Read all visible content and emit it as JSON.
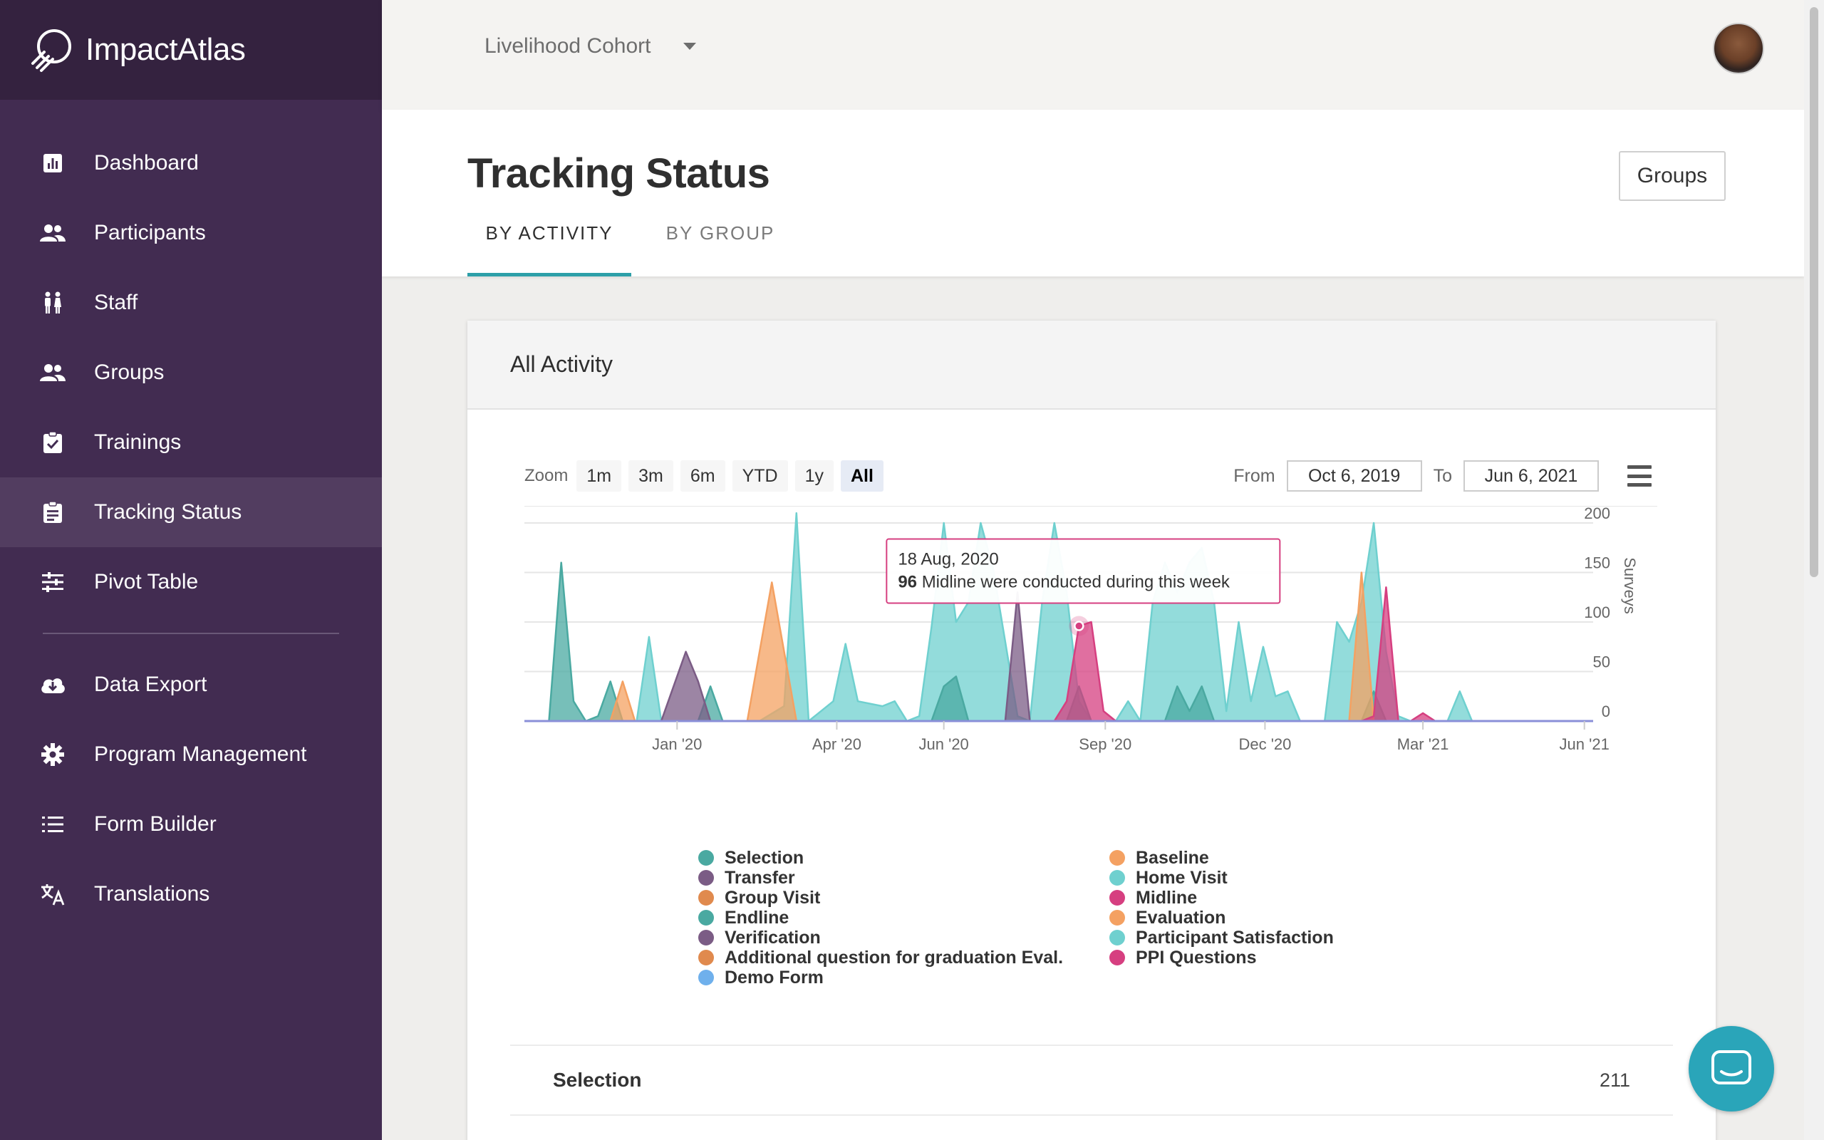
{
  "brand": {
    "name": "ImpactAtlas"
  },
  "sidebar": {
    "items": [
      {
        "label": "Dashboard",
        "icon": "dashboard-icon"
      },
      {
        "label": "Participants",
        "icon": "people-icon"
      },
      {
        "label": "Staff",
        "icon": "staff-icon"
      },
      {
        "label": "Groups",
        "icon": "people-icon"
      },
      {
        "label": "Trainings",
        "icon": "clipboard-check-icon"
      },
      {
        "label": "Tracking Status",
        "icon": "clipboard-list-icon",
        "active": true
      },
      {
        "label": "Pivot Table",
        "icon": "sliders-icon"
      }
    ],
    "items2": [
      {
        "label": "Data Export",
        "icon": "cloud-download-icon"
      },
      {
        "label": "Program Management",
        "icon": "gear-icon"
      },
      {
        "label": "Form Builder",
        "icon": "list-icon"
      },
      {
        "label": "Translations",
        "icon": "translate-icon"
      }
    ]
  },
  "topbar": {
    "cohort": "Livelihood Cohort"
  },
  "page": {
    "title": "Tracking Status",
    "groups_button": "Groups",
    "tabs": [
      "BY ACTIVITY",
      "BY GROUP"
    ]
  },
  "card": {
    "title": "All Activity",
    "zoom_label": "Zoom",
    "zoom_buttons": [
      "1m",
      "3m",
      "6m",
      "YTD",
      "1y",
      "All"
    ],
    "zoom_selected": "All",
    "from_label": "From",
    "from_value": "Oct 6, 2019",
    "to_label": "To",
    "to_value": "Jun 6, 2021"
  },
  "chart_data": {
    "type": "area",
    "ylabel": "Surveys",
    "ylim": [
      0,
      200
    ],
    "yticks": [
      0,
      50,
      100,
      150,
      200
    ],
    "x_start": "2019-10-06",
    "x_end": "2021-06-06",
    "xticks": [
      {
        "label": "Jan '20",
        "date": "2020-01-01"
      },
      {
        "label": "Apr '20",
        "date": "2020-04-01"
      },
      {
        "label": "Jun '20",
        "date": "2020-06-01"
      },
      {
        "label": "Sep '20",
        "date": "2020-09-01"
      },
      {
        "label": "Dec '20",
        "date": "2020-12-01"
      },
      {
        "label": "Mar '21",
        "date": "2021-03-01"
      },
      {
        "label": "Jun '21",
        "date": "2021-06-01"
      }
    ],
    "tooltip": {
      "date": "18 Aug, 2020",
      "value": "96",
      "text": "Midline were conducted during this week",
      "series": "Midline"
    },
    "series": [
      {
        "name": "Home Visit",
        "color": "#6fd0cf",
        "points": [
          [
            "2019-12-09",
            0
          ],
          [
            "2019-12-16",
            85
          ],
          [
            "2019-12-23",
            0
          ],
          [
            "2020-02-17",
            0
          ],
          [
            "2020-03-02",
            15
          ],
          [
            "2020-03-09",
            210
          ],
          [
            "2020-03-16",
            0
          ],
          [
            "2020-03-30",
            20
          ],
          [
            "2020-04-06",
            78
          ],
          [
            "2020-04-13",
            20
          ],
          [
            "2020-04-27",
            15
          ],
          [
            "2020-05-04",
            20
          ],
          [
            "2020-05-11",
            0
          ],
          [
            "2020-05-18",
            5
          ],
          [
            "2020-05-25",
            95
          ],
          [
            "2020-06-01",
            200
          ],
          [
            "2020-06-08",
            100
          ],
          [
            "2020-06-15",
            120
          ],
          [
            "2020-06-22",
            200
          ],
          [
            "2020-06-29",
            155
          ],
          [
            "2020-07-06",
            80
          ],
          [
            "2020-07-13",
            5
          ],
          [
            "2020-07-20",
            0
          ],
          [
            "2020-07-27",
            120
          ],
          [
            "2020-08-03",
            200
          ],
          [
            "2020-08-10",
            130
          ],
          [
            "2020-08-17",
            20
          ],
          [
            "2020-08-24",
            0
          ],
          [
            "2020-09-07",
            0
          ],
          [
            "2020-09-14",
            20
          ],
          [
            "2020-09-21",
            0
          ],
          [
            "2020-09-28",
            120
          ],
          [
            "2020-10-05",
            160
          ],
          [
            "2020-10-12",
            130
          ],
          [
            "2020-10-19",
            160
          ],
          [
            "2020-10-26",
            175
          ],
          [
            "2020-11-02",
            120
          ],
          [
            "2020-11-09",
            10
          ],
          [
            "2020-11-16",
            100
          ],
          [
            "2020-11-23",
            20
          ],
          [
            "2020-11-30",
            75
          ],
          [
            "2020-12-07",
            25
          ],
          [
            "2020-12-14",
            30
          ],
          [
            "2020-12-21",
            0
          ],
          [
            "2021-01-04",
            0
          ],
          [
            "2021-01-11",
            100
          ],
          [
            "2021-01-18",
            80
          ],
          [
            "2021-01-25",
            120
          ],
          [
            "2021-02-01",
            200
          ],
          [
            "2021-02-08",
            70
          ],
          [
            "2021-02-15",
            5
          ],
          [
            "2021-02-22",
            0
          ],
          [
            "2021-03-15",
            0
          ],
          [
            "2021-03-22",
            30
          ],
          [
            "2021-03-29",
            0
          ]
        ]
      },
      {
        "name": "Endline",
        "color": "#4aa9a1",
        "points": [
          [
            "2019-10-20",
            0
          ],
          [
            "2019-10-27",
            160
          ],
          [
            "2019-11-03",
            20
          ],
          [
            "2019-11-10",
            0
          ],
          [
            "2019-11-17",
            5
          ],
          [
            "2019-11-24",
            40
          ],
          [
            "2019-12-01",
            0
          ],
          [
            "2020-01-13",
            0
          ],
          [
            "2020-01-20",
            35
          ],
          [
            "2020-01-27",
            0
          ],
          [
            "2020-05-25",
            0
          ],
          [
            "2020-06-01",
            35
          ],
          [
            "2020-06-08",
            45
          ],
          [
            "2020-06-15",
            0
          ],
          [
            "2020-08-10",
            0
          ],
          [
            "2020-08-17",
            35
          ],
          [
            "2020-08-24",
            0
          ],
          [
            "2020-10-05",
            0
          ],
          [
            "2020-10-12",
            35
          ],
          [
            "2020-10-19",
            10
          ],
          [
            "2020-10-26",
            35
          ],
          [
            "2020-11-02",
            0
          ],
          [
            "2021-01-25",
            0
          ],
          [
            "2021-02-01",
            30
          ],
          [
            "2021-02-08",
            0
          ]
        ]
      },
      {
        "name": "Verification",
        "color": "#7b5c85",
        "points": [
          [
            "2019-12-23",
            0
          ],
          [
            "2020-01-06",
            70
          ],
          [
            "2020-01-13",
            40
          ],
          [
            "2020-01-20",
            0
          ],
          [
            "2020-07-06",
            0
          ],
          [
            "2020-07-13",
            130
          ],
          [
            "2020-07-20",
            0
          ]
        ]
      },
      {
        "name": "Evaluation",
        "color": "#f4a162",
        "points": [
          [
            "2019-11-24",
            0
          ],
          [
            "2019-12-01",
            40
          ],
          [
            "2019-12-08",
            0
          ],
          [
            "2020-02-10",
            0
          ],
          [
            "2020-02-24",
            140
          ],
          [
            "2020-03-09",
            0
          ],
          [
            "2021-01-18",
            0
          ],
          [
            "2021-01-25",
            150
          ],
          [
            "2021-02-01",
            0
          ]
        ]
      },
      {
        "name": "Midline",
        "color": "#d63f80",
        "points": [
          [
            "2020-08-03",
            0
          ],
          [
            "2020-08-10",
            20
          ],
          [
            "2020-08-17",
            96
          ],
          [
            "2020-08-24",
            100
          ],
          [
            "2020-08-31",
            10
          ],
          [
            "2020-09-07",
            0
          ],
          [
            "2021-01-25",
            0
          ],
          [
            "2021-02-01",
            5
          ],
          [
            "2021-02-08",
            135
          ],
          [
            "2021-02-15",
            0
          ],
          [
            "2021-02-22",
            0
          ],
          [
            "2021-03-01",
            8
          ],
          [
            "2021-03-08",
            0
          ]
        ]
      }
    ]
  },
  "legend": {
    "col1": [
      {
        "name": "Selection",
        "color": "#4aa9a1"
      },
      {
        "name": "Transfer",
        "color": "#7b5c85"
      },
      {
        "name": "Group Visit",
        "color": "#e08a4e"
      },
      {
        "name": "Endline",
        "color": "#4aa9a1"
      },
      {
        "name": "Verification",
        "color": "#7b5c85"
      },
      {
        "name": "Additional question for graduation Eval.",
        "color": "#e08a4e"
      },
      {
        "name": "Demo Form",
        "color": "#6fb0ec"
      }
    ],
    "col2": [
      {
        "name": "Baseline",
        "color": "#f4a162"
      },
      {
        "name": "Home Visit",
        "color": "#6fd0cf"
      },
      {
        "name": "Midline",
        "color": "#d63f80"
      },
      {
        "name": "Evaluation",
        "color": "#f4a162"
      },
      {
        "name": "Participant Satisfaction",
        "color": "#6fd0cf"
      },
      {
        "name": "PPI Questions",
        "color": "#d63f80"
      }
    ]
  },
  "summary": {
    "rows": [
      {
        "name": "Selection",
        "value": "211"
      }
    ]
  }
}
